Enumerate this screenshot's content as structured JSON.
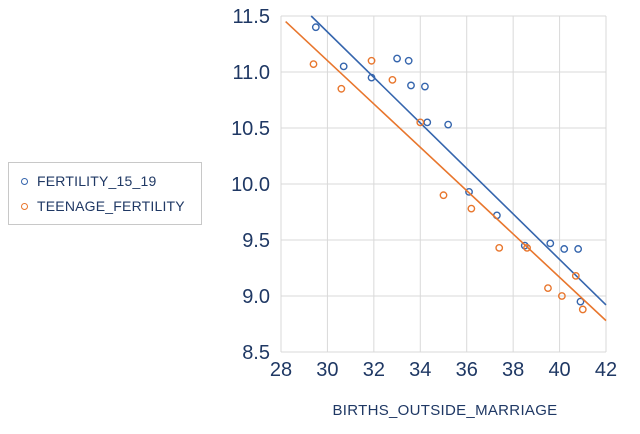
{
  "colors": {
    "series_blue": "#3565ad",
    "series_orange": "#e8762d",
    "axis_text": "#1f3864",
    "grid": "#d9d9d9"
  },
  "chart_data": {
    "type": "scatter",
    "title": "",
    "xlabel": "BIRTHS_OUTSIDE_MARRIAGE",
    "ylabel": "",
    "xlim": [
      28,
      42
    ],
    "ylim": [
      8.5,
      11.5
    ],
    "x_ticks": [
      28,
      30,
      32,
      34,
      36,
      38,
      40,
      42
    ],
    "x_tick_labels": [
      "28",
      "30",
      "32",
      "34",
      "36",
      "38",
      "40",
      "42"
    ],
    "y_ticks": [
      8.5,
      9.0,
      9.5,
      10.0,
      10.5,
      11.0,
      11.5
    ],
    "y_tick_labels": [
      "8.5",
      "9.0",
      "9.5",
      "10.0",
      "10.5",
      "11.0",
      "11.5"
    ],
    "grid": true,
    "legend_position": "left",
    "series": [
      {
        "name": "FERTILITY_15_19",
        "color": "#3565ad",
        "marker": "open-circle",
        "points": [
          [
            29.5,
            11.4
          ],
          [
            30.7,
            11.05
          ],
          [
            31.9,
            10.95
          ],
          [
            33.0,
            11.12
          ],
          [
            33.5,
            11.1
          ],
          [
            33.6,
            10.88
          ],
          [
            34.2,
            10.87
          ],
          [
            34.3,
            10.55
          ],
          [
            35.2,
            10.53
          ],
          [
            36.1,
            9.93
          ],
          [
            37.3,
            9.72
          ],
          [
            38.5,
            9.45
          ],
          [
            39.6,
            9.47
          ],
          [
            40.2,
            9.42
          ],
          [
            40.8,
            9.42
          ],
          [
            40.9,
            8.95
          ]
        ],
        "trendline": {
          "x1": 29.3,
          "y1": 11.5,
          "x2": 42.0,
          "y2": 8.92
        }
      },
      {
        "name": "TEENAGE_FERTILITY",
        "color": "#e8762d",
        "marker": "open-circle",
        "points": [
          [
            29.4,
            11.07
          ],
          [
            30.6,
            10.85
          ],
          [
            31.9,
            11.1
          ],
          [
            32.8,
            10.93
          ],
          [
            34.0,
            10.55
          ],
          [
            35.0,
            9.9
          ],
          [
            36.2,
            9.78
          ],
          [
            37.4,
            9.43
          ],
          [
            38.6,
            9.43
          ],
          [
            39.5,
            9.07
          ],
          [
            40.1,
            9.0
          ],
          [
            40.7,
            9.18
          ],
          [
            41.0,
            8.88
          ]
        ],
        "trendline": {
          "x1": 28.2,
          "y1": 11.45,
          "x2": 42.0,
          "y2": 8.78
        }
      }
    ]
  }
}
